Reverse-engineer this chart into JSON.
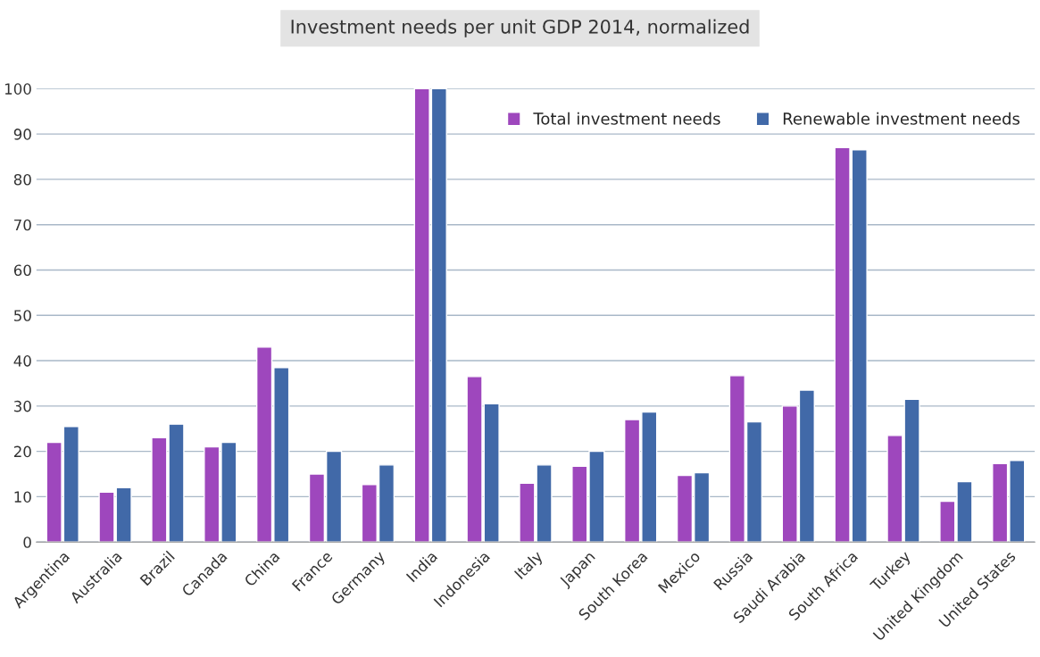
{
  "chart_data": {
    "type": "bar",
    "title": "Investment needs per unit GDP 2014, normalized",
    "categories": [
      "Argentina",
      "Australia",
      "Brazil",
      "Canada",
      "China",
      "France",
      "Germany",
      "India",
      "Indonesia",
      "Italy",
      "Japan",
      "South Korea",
      "Mexico",
      "Russia",
      "Saudi Arabia",
      "South Africa",
      "Turkey",
      "United Kingdom",
      "United States"
    ],
    "series": [
      {
        "name": "Total investment needs",
        "color": "#9e47bd",
        "values": [
          22,
          11,
          23,
          21,
          43,
          15,
          12.7,
          100,
          36.5,
          13,
          16.7,
          27,
          14.7,
          36.7,
          30,
          87,
          23.5,
          9,
          17.3
        ]
      },
      {
        "name": "Renewable investment needs",
        "color": "#4169a8",
        "values": [
          25.5,
          12,
          26,
          22,
          38.5,
          20,
          17,
          100,
          30.5,
          17,
          20,
          28.7,
          15.3,
          26.5,
          33.5,
          86.5,
          31.5,
          13.3,
          18
        ]
      }
    ],
    "ylim": [
      0,
      100
    ],
    "yticks": [
      0,
      10,
      20,
      30,
      40,
      50,
      60,
      70,
      80,
      90,
      100
    ],
    "grid": "y",
    "legend": "top right"
  }
}
